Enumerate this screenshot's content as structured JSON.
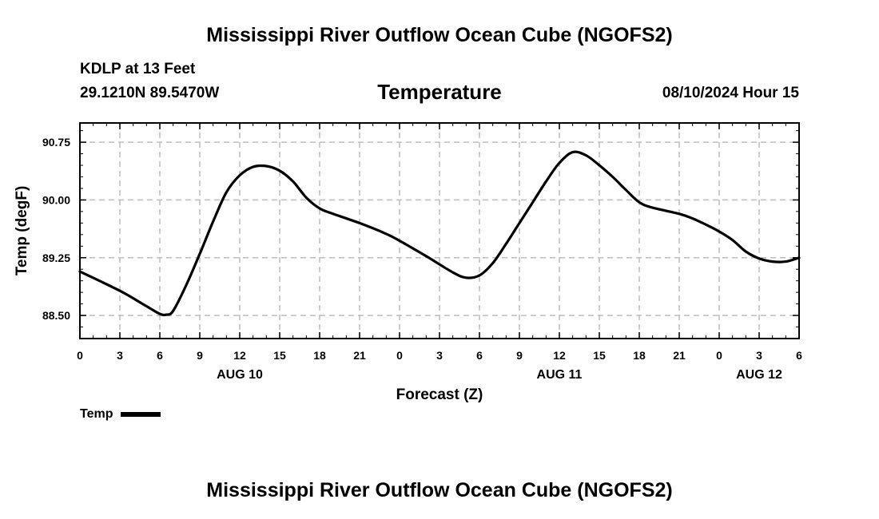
{
  "header": {
    "title": "Mississippi River Outflow Ocean Cube (NGOFS2)",
    "station": "KDLP at 13 Feet",
    "coords": "29.1210N  89.5470W",
    "variable": "Temperature",
    "datetime": "08/10/2024 Hour 15"
  },
  "footer": {
    "title": "Mississippi River Outflow Ocean Cube (NGOFS2)"
  },
  "legend": {
    "label": "Temp"
  },
  "chart_data": {
    "type": "line",
    "title": "Temperature",
    "xlabel": "Forecast (Z)",
    "ylabel": "Temp (degF)",
    "xlim": [
      0,
      54
    ],
    "ylim": [
      88.2,
      91.0
    ],
    "grid": true,
    "x_tick_values": [
      0,
      3,
      6,
      9,
      12,
      15,
      18,
      21,
      24,
      27,
      30,
      33,
      36,
      39,
      42,
      45,
      48,
      51,
      54
    ],
    "x_tick_labels": [
      "0",
      "3",
      "6",
      "9",
      "12",
      "15",
      "18",
      "21",
      "0",
      "3",
      "6",
      "9",
      "12",
      "15",
      "18",
      "21",
      "0",
      "3",
      "6"
    ],
    "date_labels": [
      {
        "x": 12,
        "label": "AUG 10"
      },
      {
        "x": 36,
        "label": "AUG 11"
      },
      {
        "x": 51,
        "label": "AUG 12"
      }
    ],
    "y_tick_values": [
      88.5,
      89.25,
      90.0,
      90.75
    ],
    "y_tick_labels": [
      "88.50",
      "89.25",
      "90.00",
      "90.75"
    ],
    "series": [
      {
        "name": "Temp",
        "x": [
          0,
          3,
          5,
          6,
          6.5,
          7,
          8,
          9,
          10,
          11,
          12,
          13,
          14,
          15,
          16,
          17,
          18,
          19,
          21,
          23,
          24,
          26,
          28,
          29,
          30,
          31,
          32,
          33,
          34,
          35,
          36,
          37,
          38,
          39,
          40,
          41,
          42,
          43,
          45,
          46,
          47,
          48,
          49,
          50,
          51,
          52,
          53,
          54
        ],
        "y": [
          89.07,
          88.82,
          88.62,
          88.52,
          88.51,
          88.56,
          88.9,
          89.3,
          89.72,
          90.1,
          90.32,
          90.43,
          90.44,
          90.38,
          90.24,
          90.03,
          89.89,
          89.82,
          89.7,
          89.56,
          89.47,
          89.27,
          89.06,
          88.99,
          89.02,
          89.18,
          89.43,
          89.7,
          89.97,
          90.24,
          90.48,
          90.62,
          90.58,
          90.45,
          90.3,
          90.13,
          89.97,
          89.9,
          89.82,
          89.76,
          89.68,
          89.59,
          89.48,
          89.33,
          89.24,
          89.2,
          89.2,
          89.25
        ]
      }
    ]
  }
}
